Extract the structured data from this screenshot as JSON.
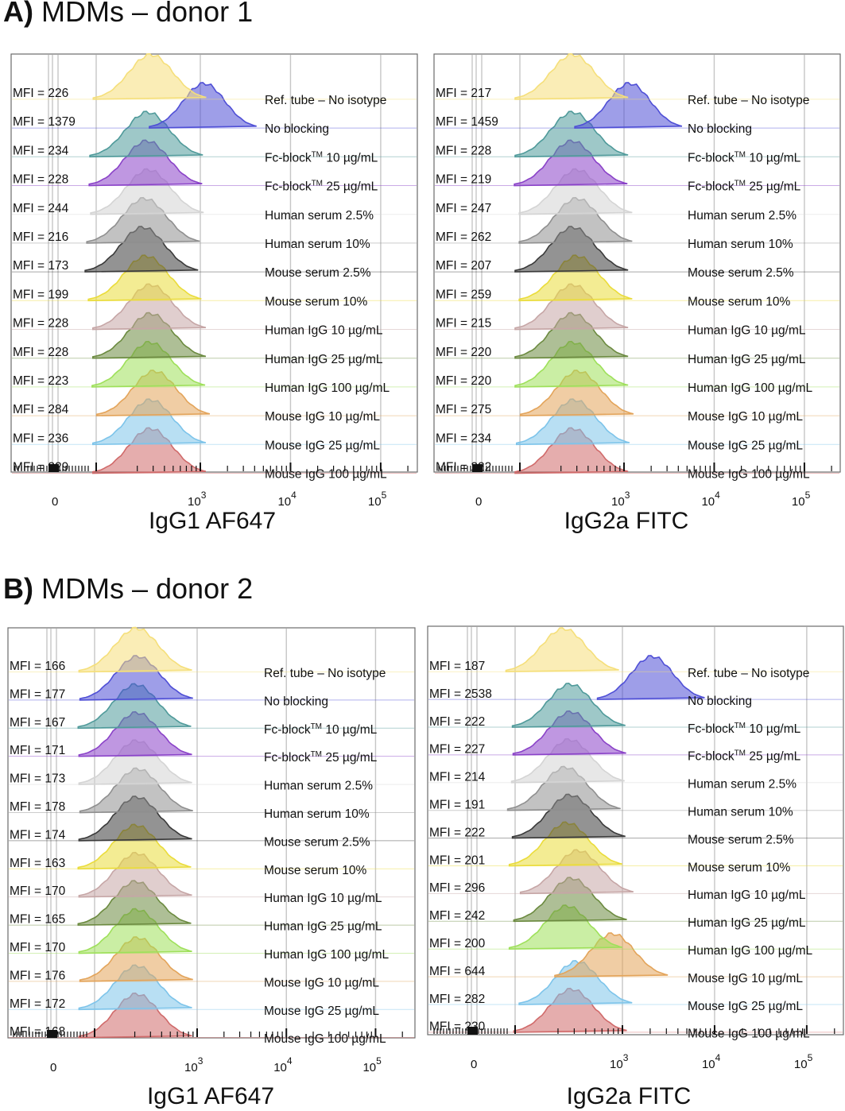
{
  "sections": [
    {
      "letter": "A)",
      "title": "MDMs – donor 1"
    },
    {
      "letter": "B)",
      "title": "MDMs – donor 2"
    }
  ],
  "colors": {
    "Ref. tube – No isotype": "#f5df7a",
    "No blocking": "#4f4fd6",
    "Fc-block 10": "#4f9a9a",
    "Fc-block 25": "#8a42c8",
    "Human serum 2.5%": "#d4d4d4",
    "Human serum 10%": "#8f8f8f",
    "Mouse serum 2.5%": "#3a3a3a",
    "Mouse serum 10%": "#eadc3a",
    "Human IgG 10": "#c6a6a6",
    "Human IgG 25": "#6b8a3f",
    "Human IgG 100": "#9ee05a",
    "Mouse IgG 10": "#e3a45a",
    "Mouse IgG 25": "#7dc4ea",
    "Mouse IgG 100": "#d06a6a"
  },
  "chart_data": [
    {
      "type": "histogram-overlay",
      "section": "A",
      "xlabel": "IgG1 AF647",
      "x_scale": "biexponential",
      "x_ticks": [
        {
          "label": "0",
          "exp": ""
        },
        {
          "label": "10",
          "exp": "3"
        },
        {
          "label": "10",
          "exp": "4"
        },
        {
          "label": "10",
          "exp": "5"
        }
      ],
      "tracks": [
        {
          "mfi": "MFI = 226",
          "label": "Ref. tube – No isotype",
          "label_sup": "",
          "label_tail": "",
          "color": "Ref. tube – No isotype",
          "peak": 283
        },
        {
          "mfi": "MFI = 1379",
          "label": "No blocking",
          "label_sup": "",
          "label_tail": "",
          "color": "No blocking",
          "peak": 1100
        },
        {
          "mfi": "MFI = 234",
          "label": "Fc-block",
          "label_sup": "TM",
          "label_tail": " 10 µg/mL",
          "color": "Fc-block 10",
          "peak": 260
        },
        {
          "mfi": "MFI = 228",
          "label": "Fc-block",
          "label_sup": "TM",
          "label_tail": " 25 µg/mL",
          "color": "Fc-block 25",
          "peak": 255
        },
        {
          "mfi": "MFI = 244",
          "label": "Human serum 2.5%",
          "label_sup": "",
          "label_tail": "",
          "color": "Human serum 2.5%",
          "peak": 265
        },
        {
          "mfi": "MFI = 216",
          "label": "Human serum 10%",
          "label_sup": "",
          "label_tail": "",
          "color": "Human serum 10%",
          "peak": 240
        },
        {
          "mfi": "MFI = 173",
          "label": "Mouse serum 2.5%",
          "label_sup": "",
          "label_tail": "",
          "color": "Mouse serum 2.5%",
          "peak": 230
        },
        {
          "mfi": "MFI = 199",
          "label": "Mouse serum 10%",
          "label_sup": "",
          "label_tail": "",
          "color": "Mouse serum 10%",
          "peak": 250
        },
        {
          "mfi": "MFI = 228",
          "label": "Human IgG 10 µg/mL",
          "label_sup": "",
          "label_tail": "",
          "color": "Human IgG 10",
          "peak": 280
        },
        {
          "mfi": "MFI = 228",
          "label": "Human IgG 25 µg/mL",
          "label_sup": "",
          "label_tail": "",
          "color": "Human IgG 25",
          "peak": 280
        },
        {
          "mfi": "MFI = 223",
          "label": "Human IgG 100 µg/mL",
          "label_sup": "",
          "label_tail": "",
          "color": "Human IgG 100",
          "peak": 275
        },
        {
          "mfi": "MFI = 284",
          "label": "Mouse IgG 10 µg/mL",
          "label_sup": "",
          "label_tail": "",
          "color": "Mouse IgG 10",
          "peak": 310
        },
        {
          "mfi": "MFI = 236",
          "label": "Mouse IgG 25 µg/mL",
          "label_sup": "",
          "label_tail": "",
          "color": "Mouse IgG 25",
          "peak": 280
        },
        {
          "mfi": "MFI = 229",
          "label": "Mouse IgG 100 µg/mL",
          "label_sup": "",
          "label_tail": "",
          "color": "Mouse IgG 100",
          "peak": 280
        }
      ]
    },
    {
      "type": "histogram-overlay",
      "section": "A",
      "xlabel": "IgG2a FITC",
      "x_scale": "biexponential",
      "x_ticks": [
        {
          "label": "0",
          "exp": ""
        },
        {
          "label": "10",
          "exp": "3"
        },
        {
          "label": "10",
          "exp": "4"
        },
        {
          "label": "10",
          "exp": "5"
        }
      ],
      "tracks": [
        {
          "mfi": "MFI = 217",
          "label": "Ref. tube – No isotype",
          "label_sup": "",
          "label_tail": "",
          "color": "Ref. tube – No isotype",
          "peak": 270
        },
        {
          "mfi": "MFI = 1459",
          "label": "No blocking",
          "label_sup": "",
          "label_tail": "",
          "color": "No blocking",
          "peak": 1150
        },
        {
          "mfi": "MFI = 228",
          "label": "Fc-block",
          "label_sup": "TM",
          "label_tail": " 10 µg/mL",
          "color": "Fc-block 10",
          "peak": 270
        },
        {
          "mfi": "MFI = 219",
          "label": "Fc-block",
          "label_sup": "TM",
          "label_tail": " 25 µg/mL",
          "color": "Fc-block 25",
          "peak": 265
        },
        {
          "mfi": "MFI = 247",
          "label": "Human serum 2.5%",
          "label_sup": "",
          "label_tail": "",
          "color": "Human serum 2.5%",
          "peak": 300
        },
        {
          "mfi": "MFI = 262",
          "label": "Human serum 10%",
          "label_sup": "",
          "label_tail": "",
          "color": "Human serum 10%",
          "peak": 300
        },
        {
          "mfi": "MFI = 207",
          "label": "Mouse serum 2.5%",
          "label_sup": "",
          "label_tail": "",
          "color": "Mouse serum 2.5%",
          "peak": 270
        },
        {
          "mfi": "MFI = 259",
          "label": "Mouse serum 10%",
          "label_sup": "",
          "label_tail": "",
          "color": "Mouse serum 10%",
          "peak": 300
        },
        {
          "mfi": "MFI = 215",
          "label": "Human IgG 10 µg/mL",
          "label_sup": "",
          "label_tail": "",
          "color": "Human IgG 10",
          "peak": 270
        },
        {
          "mfi": "MFI = 220",
          "label": "Human IgG 25 µg/mL",
          "label_sup": "",
          "label_tail": "",
          "color": "Human IgG 25",
          "peak": 270
        },
        {
          "mfi": "MFI = 220",
          "label": "Human IgG 100 µg/mL",
          "label_sup": "",
          "label_tail": "",
          "color": "Human IgG 100",
          "peak": 270
        },
        {
          "mfi": "MFI = 275",
          "label": "Mouse IgG 10 µg/mL",
          "label_sup": "",
          "label_tail": "",
          "color": "Mouse IgG 10",
          "peak": 310
        },
        {
          "mfi": "MFI = 234",
          "label": "Mouse IgG 25 µg/mL",
          "label_sup": "",
          "label_tail": "",
          "color": "Mouse IgG 25",
          "peak": 280
        },
        {
          "mfi": "MFI = 222",
          "label": "Mouse IgG 100 µg/mL",
          "label_sup": "",
          "label_tail": "",
          "color": "Mouse IgG 100",
          "peak": 270
        }
      ]
    },
    {
      "type": "histogram-overlay",
      "section": "B",
      "xlabel": "IgG1 AF647",
      "x_scale": "biexponential",
      "x_ticks": [
        {
          "label": "0",
          "exp": ""
        },
        {
          "label": "10",
          "exp": "3"
        },
        {
          "label": "10",
          "exp": "4"
        },
        {
          "label": "10",
          "exp": "5"
        }
      ],
      "tracks": [
        {
          "mfi": "MFI = 166",
          "label": "Ref. tube – No isotype",
          "label_sup": "",
          "label_tail": "",
          "color": "Ref. tube – No isotype",
          "peak": 210
        },
        {
          "mfi": "MFI = 177",
          "label": "No blocking",
          "label_sup": "",
          "label_tail": "",
          "color": "No blocking",
          "peak": 215
        },
        {
          "mfi": "MFI = 167",
          "label": "Fc-block",
          "label_sup": "TM",
          "label_tail": " 10 µg/mL",
          "color": "Fc-block 10",
          "peak": 205
        },
        {
          "mfi": "MFI = 171",
          "label": "Fc-block",
          "label_sup": "TM",
          "label_tail": " 25 µg/mL",
          "color": "Fc-block 25",
          "peak": 210
        },
        {
          "mfi": "MFI = 173",
          "label": "Human serum 2.5%",
          "label_sup": "",
          "label_tail": "",
          "color": "Human serum 2.5%",
          "peak": 210
        },
        {
          "mfi": "MFI = 178",
          "label": "Human serum 10%",
          "label_sup": "",
          "label_tail": "",
          "color": "Human serum 10%",
          "peak": 215
        },
        {
          "mfi": "MFI = 174",
          "label": "Mouse serum 2.5%",
          "label_sup": "",
          "label_tail": "",
          "color": "Mouse serum 2.5%",
          "peak": 210
        },
        {
          "mfi": "MFI = 163",
          "label": "Mouse serum 10%",
          "label_sup": "",
          "label_tail": "",
          "color": "Mouse serum 10%",
          "peak": 205
        },
        {
          "mfi": "MFI = 170",
          "label": "Human IgG 10 µg/mL",
          "label_sup": "",
          "label_tail": "",
          "color": "Human IgG 10",
          "peak": 210
        },
        {
          "mfi": "MFI = 165",
          "label": "Human IgG 25 µg/mL",
          "label_sup": "",
          "label_tail": "",
          "color": "Human IgG 25",
          "peak": 205
        },
        {
          "mfi": "MFI = 170",
          "label": "Human IgG 100 µg/mL",
          "label_sup": "",
          "label_tail": "",
          "color": "Human IgG 100",
          "peak": 210
        },
        {
          "mfi": "MFI = 176",
          "label": "Mouse IgG 10 µg/mL",
          "label_sup": "",
          "label_tail": "",
          "color": "Mouse IgG 10",
          "peak": 215
        },
        {
          "mfi": "MFI = 172",
          "label": "Mouse IgG 25 µg/mL",
          "label_sup": "",
          "label_tail": "",
          "color": "Mouse IgG 25",
          "peak": 210
        },
        {
          "mfi": "MFI = 168",
          "label": "Mouse IgG 100 µg/mL",
          "label_sup": "",
          "label_tail": "",
          "color": "Mouse IgG 100",
          "peak": 210
        }
      ]
    },
    {
      "type": "histogram-overlay",
      "section": "B",
      "xlabel": "IgG2a FITC",
      "x_scale": "biexponential",
      "x_ticks": [
        {
          "label": "0",
          "exp": ""
        },
        {
          "label": "10",
          "exp": "3"
        },
        {
          "label": "10",
          "exp": "4"
        },
        {
          "label": "10",
          "exp": "5"
        }
      ],
      "tracks": [
        {
          "mfi": "MFI = 187",
          "label": "Ref. tube – No isotype",
          "label_sup": "",
          "label_tail": "",
          "color": "Ref. tube – No isotype",
          "peak": 230
        },
        {
          "mfi": "MFI = 2538",
          "label": "No blocking",
          "label_sup": "",
          "label_tail": "",
          "color": "No blocking",
          "peak": 2100
        },
        {
          "mfi": "MFI = 222",
          "label": "Fc-block",
          "label_sup": "TM",
          "label_tail": " 10 µg/mL",
          "color": "Fc-block 10",
          "peak": 270
        },
        {
          "mfi": "MFI = 227",
          "label": "Fc-block",
          "label_sup": "TM",
          "label_tail": " 25 µg/mL",
          "color": "Fc-block 25",
          "peak": 275
        },
        {
          "mfi": "MFI = 214",
          "label": "Human serum 2.5%",
          "label_sup": "",
          "label_tail": "",
          "color": "Human serum 2.5%",
          "peak": 265
        },
        {
          "mfi": "MFI = 191",
          "label": "Human serum 10%",
          "label_sup": "",
          "label_tail": "",
          "color": "Human serum 10%",
          "peak": 240
        },
        {
          "mfi": "MFI = 222",
          "label": "Mouse serum 2.5%",
          "label_sup": "",
          "label_tail": "",
          "color": "Mouse serum 2.5%",
          "peak": 270
        },
        {
          "mfi": "MFI = 201",
          "label": "Mouse serum 10%",
          "label_sup": "",
          "label_tail": "",
          "color": "Mouse serum 10%",
          "peak": 250
        },
        {
          "mfi": "MFI = 296",
          "label": "Human IgG 10 µg/mL",
          "label_sup": "",
          "label_tail": "",
          "color": "Human IgG 10",
          "peak": 330
        },
        {
          "mfi": "MFI = 242",
          "label": "Human IgG 25 µg/mL",
          "label_sup": "",
          "label_tail": "",
          "color": "Human IgG 25",
          "peak": 280
        },
        {
          "mfi": "MFI = 200",
          "label": "Human IgG 100 µg/mL",
          "label_sup": "",
          "label_tail": "",
          "color": "Human IgG 100",
          "peak": 250
        },
        {
          "mfi": "MFI = 644",
          "label": "Mouse IgG 10 µg/mL",
          "label_sup": "",
          "label_tail": "",
          "color": "Mouse IgG 10",
          "peak": 780
        },
        {
          "mfi": "MFI = 282",
          "label": "Mouse IgG 25 µg/mL",
          "label_sup": "",
          "label_tail": "",
          "color": "Mouse IgG 25",
          "peak": 320
        },
        {
          "mfi": "MFI = 230",
          "label": "Mouse IgG 100 µg/mL",
          "label_sup": "",
          "label_tail": "",
          "color": "Mouse IgG 100",
          "peak": 280
        }
      ]
    }
  ]
}
